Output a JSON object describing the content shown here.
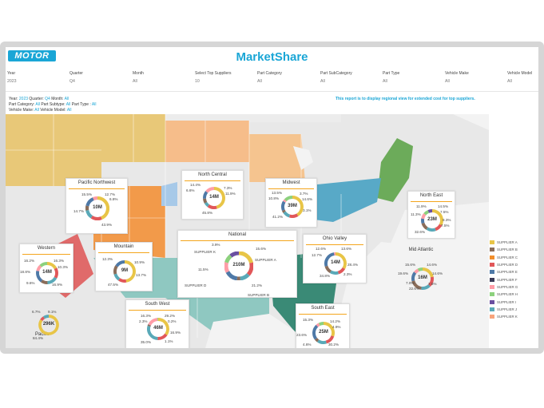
{
  "app": {
    "logo": "MOTOR",
    "title": "MarketShare"
  },
  "filters": [
    {
      "label": "Year",
      "value": "2023"
    },
    {
      "label": "Quarter",
      "value": "Q4"
    },
    {
      "label": "Month",
      "value": "All"
    },
    {
      "label": "Select Top Suppliers",
      "value": "10"
    },
    {
      "label": "Part Category",
      "value": "All"
    },
    {
      "label": "Part SubCategory",
      "value": "All"
    },
    {
      "label": "Part Type",
      "value": "All"
    },
    {
      "label": "Vehicle Make",
      "value": "All"
    },
    {
      "label": "Vehicle Model",
      "value": "All"
    }
  ],
  "crumbs": {
    "line1_prefix": "Year:",
    "year": "2023",
    "q_label": "Quarter:",
    "quarter": "Q4",
    "m_label": "Month:",
    "month": "All",
    "line2_prefix": "Part Category:",
    "category": "All",
    "sub_label": "Part Subtype:",
    "subtype": "All",
    "type_label": "Part Type :",
    "type": "All",
    "line3_prefix": "Vehicle Make:",
    "make": "All",
    "model_label": "Vehicle Model:",
    "model": "All"
  },
  "note": "This report is to display regional view for extended cost for top suppliers.",
  "colors": {
    "supplier_a": "#e8c547",
    "supplier_b": "#8a6d5a",
    "supplier_c": "#f28e2b",
    "supplier_d": "#e15759",
    "supplier_e": "#4e79a7",
    "supplier_f": "#3b3b57",
    "supplier_g": "#ff9da7",
    "supplier_h": "#8cd17d",
    "supplier_i": "#6a4fa0",
    "supplier_j": "#59a9b8",
    "supplier_k": "#f7a47c",
    "pacific_nw": "#e8c878",
    "north_central": "#f6bd8a",
    "midwest_fill": "#f5c48f",
    "north_east": "#6cab5a",
    "ohio_valley": "#58a9c7",
    "mid_atlantic": "#d9cbbd",
    "western": "#e06a6a",
    "mountain": "#f29a4a",
    "south_west": "#8fc8c1",
    "south_east": "#3a8a76",
    "texas": "#7ab8b1",
    "land": "#e9e9e9",
    "water": "#f5f5f5"
  },
  "legend": [
    "SUPPLIER A",
    "SUPPLIER B",
    "SUPPLIER C",
    "SUPPLIER D",
    "SUPPLIER E",
    "SUPPLIER F",
    "SUPPLIER G",
    "SUPPLIER H",
    "SUPPLIER I",
    "SUPPLIER J",
    "SUPPLIER K"
  ],
  "regions": {
    "pacific_nw": {
      "title": "Pacific Northwest",
      "total": "10M",
      "labels": [
        "15.5%",
        "12.7%",
        "6.8%",
        "14.7%",
        "43.9%"
      ]
    },
    "north_central": {
      "title": "North Central",
      "total": "14M",
      "labels": [
        "14.4%",
        "6.6%",
        "7.3%",
        "11.9%",
        "45.8%"
      ]
    },
    "midwest": {
      "title": "Midwest",
      "total": "39M",
      "labels": [
        "13.5%",
        "10.8%",
        "3.7%",
        "14.6%",
        "3.1%",
        "41.2%"
      ]
    },
    "north_east": {
      "title": "North East",
      "total": "23M",
      "labels": [
        "11.9%",
        "14.5%",
        "11.3%",
        "7.5%",
        "8.3%",
        "7.5%",
        "32.6%"
      ]
    },
    "national": {
      "title": "National",
      "total": "210M",
      "labels": [
        "3.9%",
        "15.6%",
        "11.5%",
        "21.2%"
      ],
      "suppliers": [
        "SUPPLIER K",
        "SUPPLIER A",
        "SUPPLIER D",
        "SUPPLIER B"
      ]
    },
    "ohio_valley": {
      "title": "Ohio Valley",
      "total": "14M",
      "labels": [
        "12.6%",
        "13.6%",
        "12.7%",
        "28.4%",
        "34.8%",
        "2.3%"
      ]
    },
    "western": {
      "title": "Western",
      "total": "14M",
      "labels": [
        "16.2%",
        "16.3%",
        "10.3%",
        "18.8%",
        "9.6%",
        "16.9%"
      ]
    },
    "mountain": {
      "title": "Mountain",
      "total": "9M",
      "labels": [
        "12.3%",
        "10.9%",
        "13.7%",
        "47.5%"
      ]
    },
    "south_west": {
      "title": "South West",
      "total": "46M",
      "labels": [
        "16.3%",
        "29.2%",
        "2.3%",
        "0.2%",
        "16.9%",
        "35.0%",
        "1.1%"
      ]
    },
    "south_east": {
      "title": "South East",
      "total": "25M",
      "labels": [
        "15.3%",
        "14.2%",
        "4.9%",
        "23.6%",
        "4.6%",
        "30.2%"
      ]
    },
    "mid_atlantic": {
      "title": "Mid Atlantic",
      "total": "16M",
      "labels": [
        "15.6%",
        "14.6%",
        "19.6%",
        "14.6%",
        "7.0%",
        "22.6%",
        "7.5%"
      ]
    },
    "pacific": {
      "title": "Pacific",
      "total": "296K",
      "labels": [
        "6.7%",
        "9.1%",
        "84.4%"
      ]
    }
  }
}
